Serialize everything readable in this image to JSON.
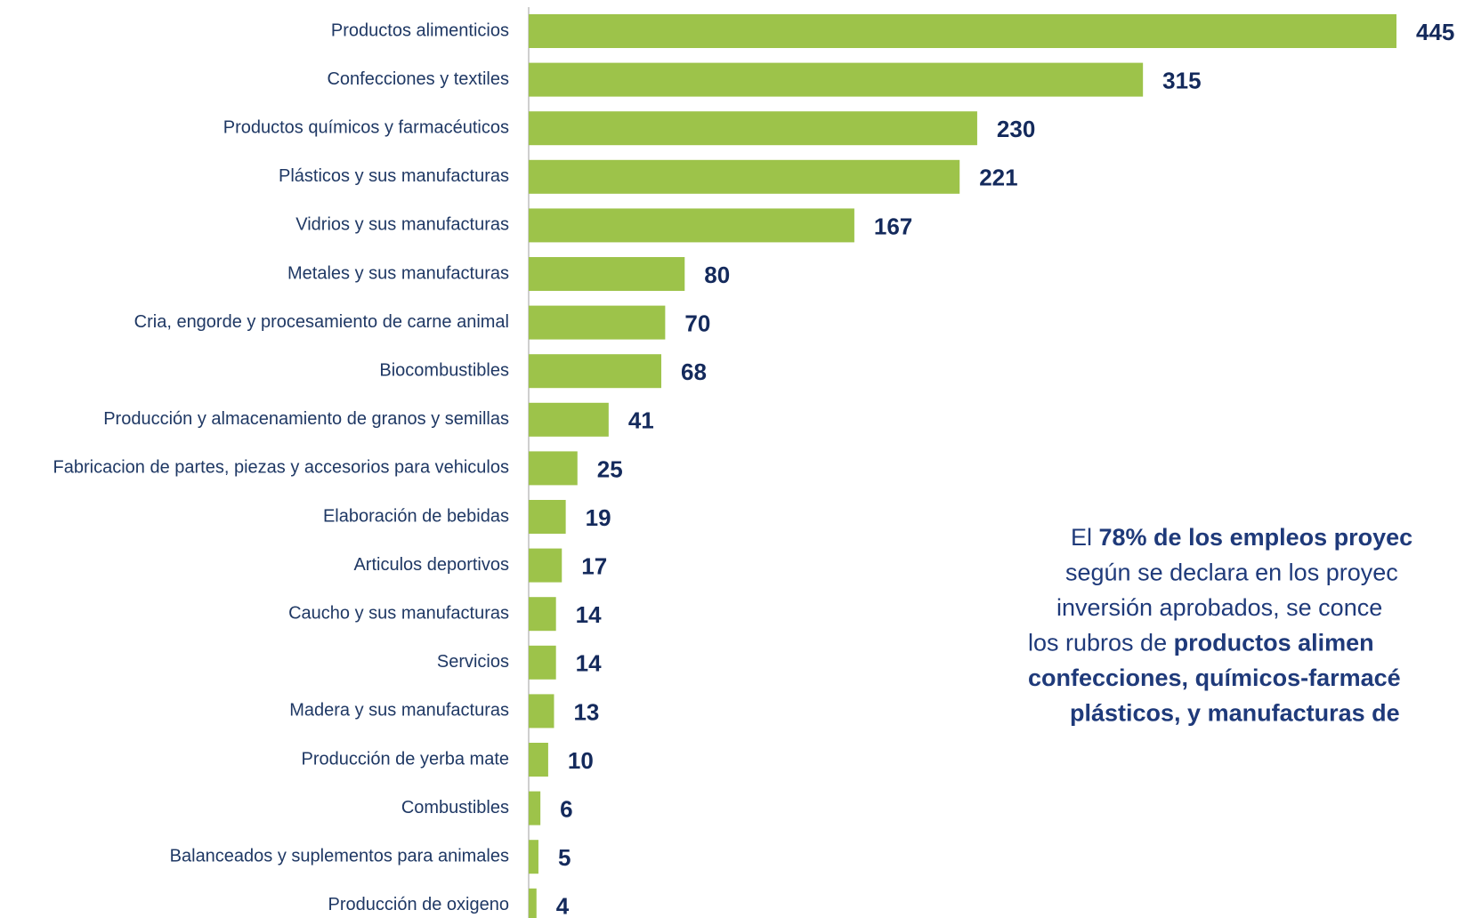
{
  "chart_data": {
    "type": "bar",
    "orientation": "horizontal",
    "color": "#9dc34a",
    "categories": [
      "Productos alimenticios",
      "Confecciones y textiles",
      "Productos químicos y farmacéuticos",
      "Plásticos y sus manufacturas",
      "Vidrios y sus manufacturas",
      "Metales y sus manufacturas",
      "Cria, engorde y procesamiento de carne animal",
      "Biocombustibles",
      "Producción y almacenamiento  de granos y semillas",
      "Fabricacion de partes, piezas y accesorios para vehiculos",
      "Elaboración de bebidas",
      "Articulos deportivos",
      "Caucho y sus manufacturas",
      "Servicios",
      "Madera y sus manufacturas",
      "Producción de yerba mate",
      "Combustibles",
      "Balanceados y suplementos para animales",
      "Producción de oxigeno"
    ],
    "values": [
      445,
      315,
      230,
      221,
      167,
      80,
      70,
      68,
      41,
      25,
      19,
      17,
      14,
      14,
      13,
      10,
      6,
      5,
      4
    ],
    "annotation": [
      [
        {
          "text": "El ",
          "bold": false
        },
        {
          "text": "78% de los empleos proyec",
          "bold": true
        }
      ],
      [
        {
          "text": "según se declara en los proyec",
          "bold": false
        }
      ],
      [
        {
          "text": "inversión aprobados, se conce",
          "bold": false
        }
      ],
      [
        {
          "text": "los rubros de ",
          "bold": false
        },
        {
          "text": "productos alimen",
          "bold": true
        }
      ],
      [
        {
          "text": "confecciones, químicos-farmacé",
          "bold": true
        }
      ],
      [
        {
          "text": "plásticos, y manufacturas de",
          "bold": true
        }
      ]
    ]
  }
}
